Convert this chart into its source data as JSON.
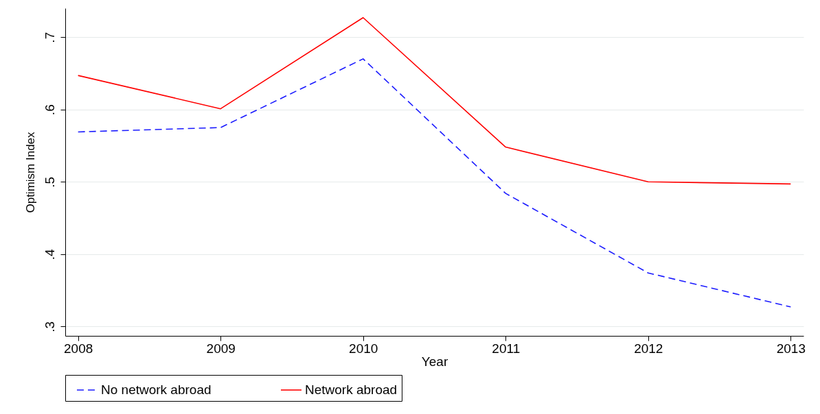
{
  "chart_data": {
    "type": "line",
    "xlabel": "Year",
    "ylabel": "Optimism Index",
    "x": [
      2008,
      2009,
      2010,
      2011,
      2012,
      2013
    ],
    "xlim": [
      2007.91,
      2013.09
    ],
    "xticks": [
      2008,
      2009,
      2010,
      2011,
      2012,
      2013
    ],
    "ylim": [
      0.287,
      0.74
    ],
    "yticks": [
      {
        "value": 0.3,
        "label": ".3"
      },
      {
        "value": 0.4,
        "label": ".4"
      },
      {
        "value": 0.5,
        "label": ".5"
      },
      {
        "value": 0.6,
        "label": ".6"
      },
      {
        "value": 0.7,
        "label": ".7"
      }
    ],
    "series": [
      {
        "name": "No network abroad",
        "color": "#1a1aff",
        "line_style": "dashed",
        "values": [
          0.569,
          0.575,
          0.67,
          0.484,
          0.374,
          0.327
        ]
      },
      {
        "name": "Network abroad",
        "color": "#ff0000",
        "line_style": "solid",
        "values": [
          0.647,
          0.601,
          0.727,
          0.548,
          0.5,
          0.497
        ]
      }
    ],
    "grid": "y",
    "legend": "bottom",
    "marker": "none"
  }
}
